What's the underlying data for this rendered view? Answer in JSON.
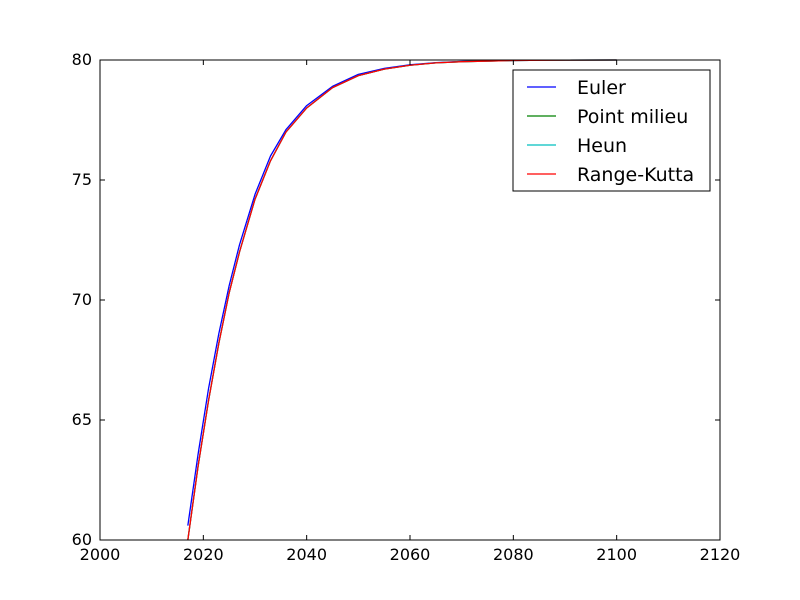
{
  "chart_data": {
    "type": "line",
    "title": "",
    "xlabel": "",
    "ylabel": "",
    "xlim": [
      2000,
      2120
    ],
    "ylim": [
      60,
      80
    ],
    "x_ticks": [
      2000,
      2020,
      2040,
      2060,
      2080,
      2100,
      2120
    ],
    "y_ticks": [
      60,
      65,
      70,
      75,
      80
    ],
    "grid": false,
    "legend_position": "top-right",
    "x": [
      2017,
      2019,
      2021,
      2023,
      2025,
      2027,
      2030,
      2033,
      2036,
      2040,
      2045,
      2050,
      2055,
      2060,
      2065,
      2070,
      2080,
      2090,
      2100
    ],
    "series": [
      {
        "name": "Euler",
        "color": "#0000ff",
        "values": [
          60.6,
          63.6,
          66.3,
          68.6,
          70.6,
          72.3,
          74.4,
          76.0,
          77.1,
          78.1,
          78.9,
          79.4,
          79.65,
          79.8,
          79.89,
          79.94,
          79.98,
          79.995,
          80.0
        ]
      },
      {
        "name": "Point milieu",
        "color": "#008000",
        "values": [
          60.0,
          63.1,
          65.8,
          68.2,
          70.3,
          72.0,
          74.2,
          75.8,
          77.0,
          78.0,
          78.85,
          79.35,
          79.62,
          79.78,
          79.88,
          79.93,
          79.98,
          79.995,
          80.0
        ]
      },
      {
        "name": "Heun",
        "color": "#00bfbf",
        "values": [
          60.0,
          63.1,
          65.8,
          68.2,
          70.3,
          72.0,
          74.2,
          75.8,
          77.0,
          78.0,
          78.85,
          79.35,
          79.62,
          79.78,
          79.88,
          79.93,
          79.98,
          79.995,
          80.0
        ]
      },
      {
        "name": "Range-Kutta",
        "color": "#ff0000",
        "values": [
          60.0,
          63.1,
          65.8,
          68.2,
          70.3,
          72.0,
          74.2,
          75.8,
          77.0,
          78.0,
          78.85,
          79.35,
          79.62,
          79.78,
          79.88,
          79.93,
          79.98,
          79.995,
          80.0
        ]
      }
    ]
  }
}
